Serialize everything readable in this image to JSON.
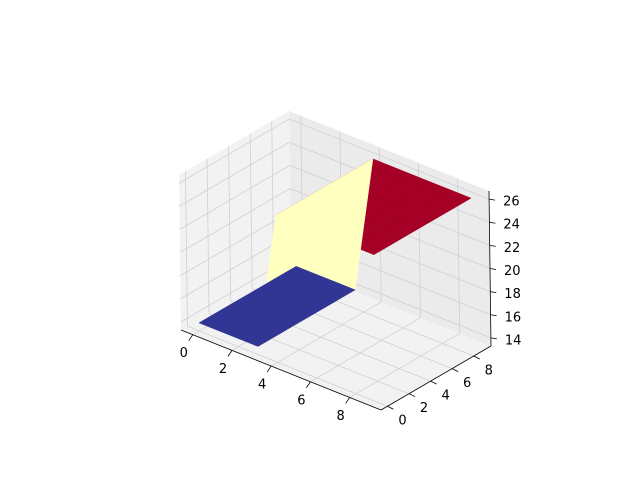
{
  "chart_data": {
    "type": "surface",
    "title": "",
    "xlabel": "",
    "ylabel": "",
    "zlabel": "",
    "x_ticks": [
      0,
      2,
      4,
      6,
      8
    ],
    "y_ticks": [
      0,
      2,
      4,
      6,
      8
    ],
    "z_ticks": [
      14,
      16,
      18,
      20,
      22,
      24,
      26
    ],
    "xlim": [
      -0.6,
      9.6
    ],
    "ylim": [
      -0.6,
      9.6
    ],
    "zlim": [
      13.3,
      26.7
    ],
    "grid": true,
    "x": [
      0,
      1,
      2,
      3,
      4,
      5,
      6,
      7,
      8,
      9
    ],
    "y": [
      0,
      1,
      2,
      3,
      4,
      5,
      6,
      7,
      8,
      9
    ],
    "step_x": 4,
    "low_z": 14,
    "high_z": 26,
    "colors": {
      "low": "#313695",
      "mid": "#ffffbf",
      "high": "#a50026",
      "pane": "#f2f2f2",
      "pane_side": "#ebebeb",
      "grid": "#d0d0d0"
    }
  }
}
